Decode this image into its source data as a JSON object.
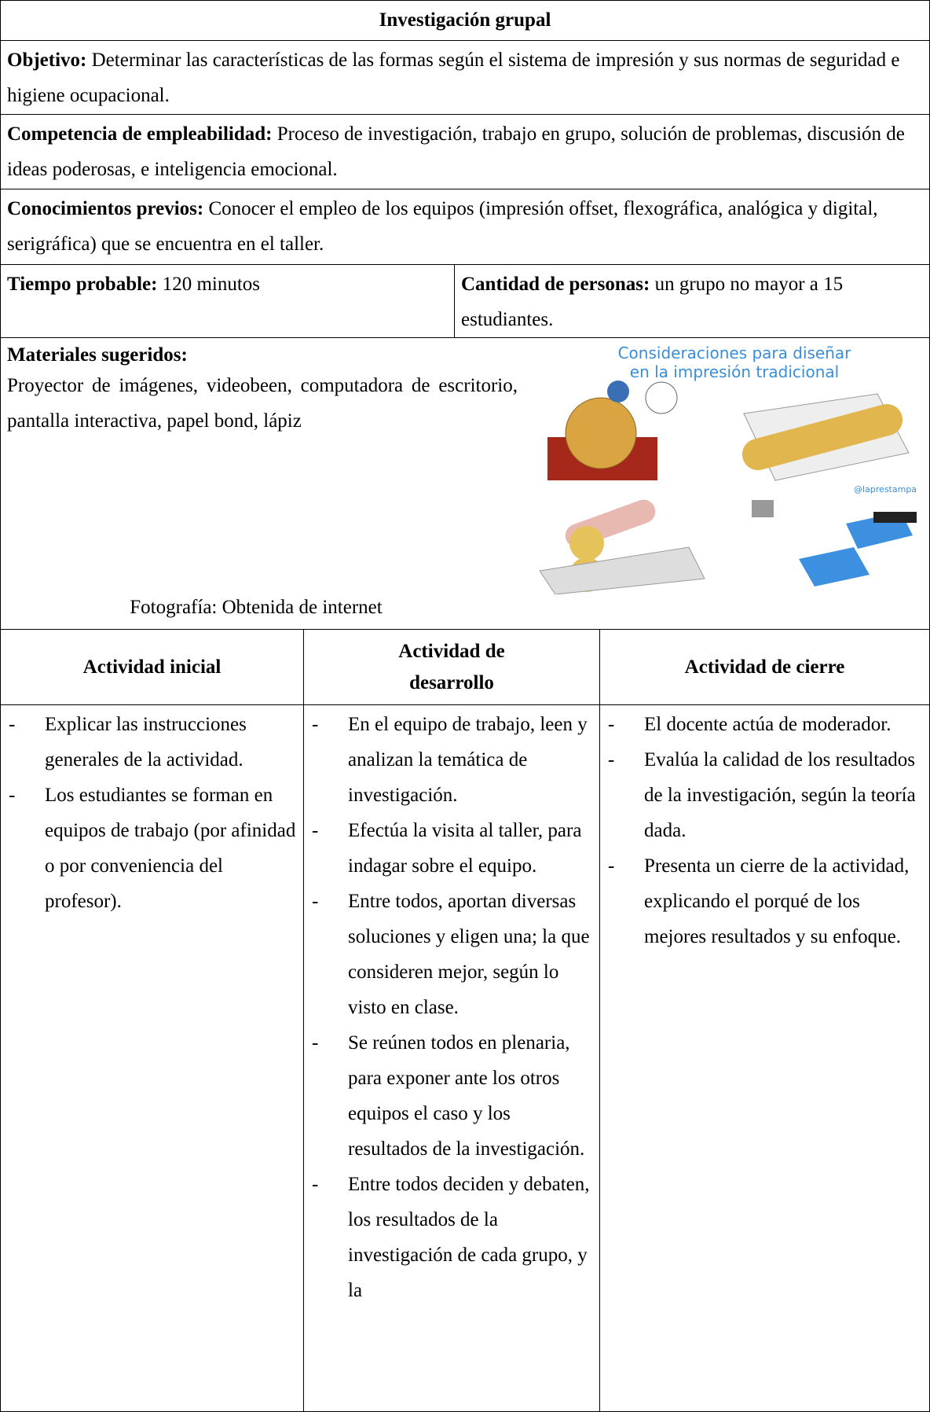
{
  "title": "Investigación grupal",
  "objetivo": {
    "label": "Objetivo:",
    "text": "Determinar las características de las formas según el sistema de impresión y sus normas de seguridad e higiene ocupacional."
  },
  "competencia": {
    "label": "Competencia de empleabilidad:",
    "text": "Proceso de investigación, trabajo en grupo, solución de problemas, discusión de ideas poderosas, e inteligencia emocional."
  },
  "conocimientos": {
    "label": "Conocimientos previos:",
    "text": "Conocer el empleo de los equipos (impresión offset, flexográfica, analógica y digital, serigráfica) que se encuentra en el taller."
  },
  "tiempo": {
    "label": "Tiempo probable:",
    "text": "120 minutos"
  },
  "cantidad": {
    "label": "Cantidad de personas:",
    "text": "un grupo no mayor a 15 estudiantes."
  },
  "materiales": {
    "label": "Materiales sugeridos:",
    "text": "Proyector de imágenes, videobeen, computadora de escritorio, pantalla interactiva, papel bond, lápiz"
  },
  "image": {
    "title_lines": [
      "Consideraciones para diseñar",
      "en la impresión tradicional"
    ],
    "handle": "@laprestampa"
  },
  "photo_credit": "Fotografía: Obtenida de internet",
  "activities": [
    {
      "header": "Actividad inicial",
      "items": [
        "Explicar las instrucciones generales de la actividad.",
        "Los estudiantes se forman en equipos de trabajo (por afinidad o por conveniencia del profesor)."
      ]
    },
    {
      "header": "Actividad de desarrollo",
      "items": [
        "En el equipo de trabajo, leen y analizan la temática de investigación.",
        "Efectúa la visita al taller, para indagar sobre el equipo.",
        "Entre todos, aportan diversas soluciones y eligen una; la que consideren mejor, según lo visto en clase.",
        "Se reúnen todos en plenaria, para exponer ante los otros equipos el caso y los resultados de la investigación.",
        "Entre todos deciden y debaten, los resultados de la investigación de cada grupo, y la"
      ]
    },
    {
      "header": "Actividad de cierre",
      "items": [
        "El docente actúa de moderador.",
        "Evalúa la calidad de los resultados de la investigación, según la teoría dada.",
        "Presenta un cierre de la actividad, explicando el porqué de los mejores resultados y su enfoque."
      ]
    }
  ]
}
